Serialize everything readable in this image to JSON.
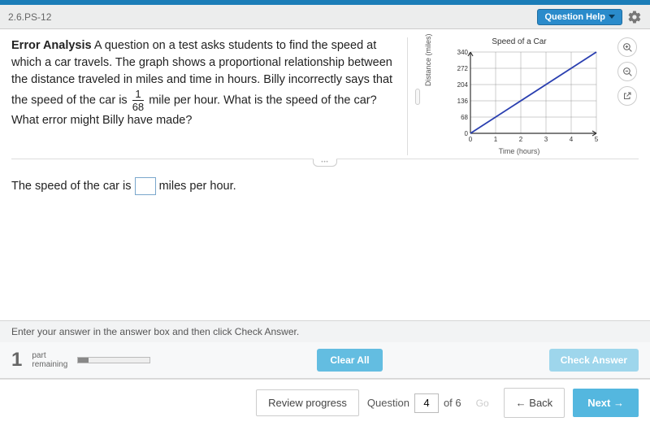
{
  "header": {
    "question_id": "2.6.PS-12",
    "help_label": "Question Help"
  },
  "problem": {
    "bold": "Error Analysis",
    "text_before_frac": "  A question on a test asks students to find the speed at which a car travels. The graph shows a proportional relationship between the distance traveled in miles and time in hours. Billy incorrectly says that the speed of the car is ",
    "frac_num": "1",
    "frac_den": "68",
    "text_after_frac": " mile per hour. What is the speed of the car? What error might Billy have made?"
  },
  "graph": {
    "title": "Speed of a Car",
    "ylabel": "Distance (miles)",
    "xlabel": "Time (hours)",
    "yticks": [
      "0",
      "68",
      "136",
      "204",
      "272",
      "340"
    ],
    "xticks": [
      "0",
      "1",
      "2",
      "3",
      "4",
      "5"
    ],
    "line_color": "#2a3fb0",
    "grid_color": "#999999",
    "line_start": [
      0,
      0
    ],
    "line_end": [
      5,
      340
    ]
  },
  "answer": {
    "before": "The speed of the car is ",
    "after": " miles per hour.",
    "value": ""
  },
  "instruction": "Enter your answer in the answer box and then click Check Answer.",
  "parts": {
    "count": "1",
    "label1": "part",
    "label2": "remaining",
    "progress_pct": 15
  },
  "buttons": {
    "clear": "Clear All",
    "check": "Check Answer",
    "review": "Review progress",
    "question_label": "Question",
    "question_num": "4",
    "question_total": "of 6",
    "go": "Go",
    "back": "Back",
    "next": "Next"
  }
}
